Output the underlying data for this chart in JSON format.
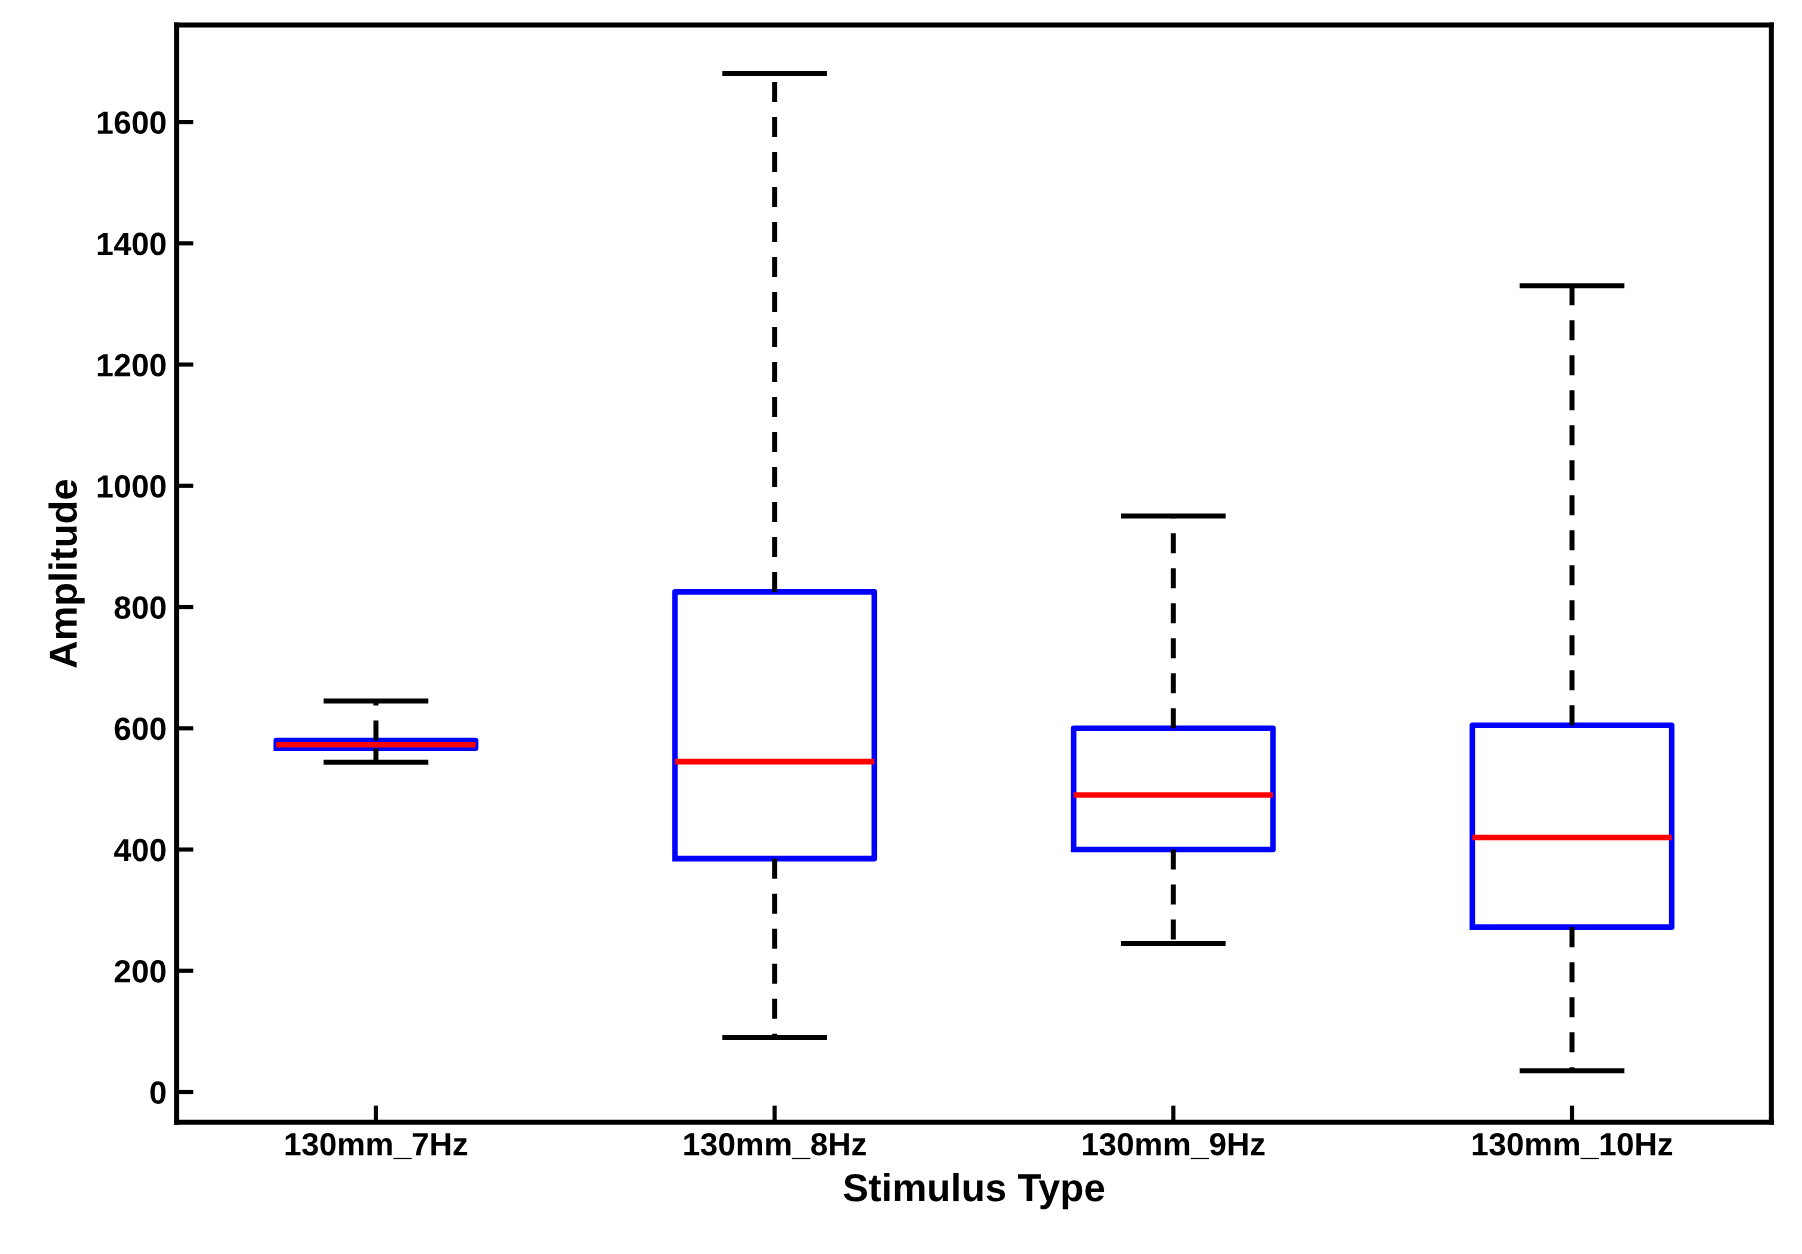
{
  "chart_data": {
    "type": "box",
    "xlabel": "Stimulus Type",
    "ylabel": "Amplitude",
    "categories": [
      "130mm_7Hz",
      "130mm_8Hz",
      "130mm_9Hz",
      "130mm_10Hz"
    ],
    "boxes": [
      {
        "low": 544,
        "q1": 567,
        "median": 573,
        "q3": 580,
        "high": 645
      },
      {
        "low": 90,
        "q1": 385,
        "median": 545,
        "q3": 825,
        "high": 1680
      },
      {
        "low": 245,
        "q1": 400,
        "median": 490,
        "q3": 600,
        "high": 950
      },
      {
        "low": 35,
        "q1": 272,
        "median": 420,
        "q3": 605,
        "high": 1330
      }
    ],
    "color": "#0000ff",
    "ylim": [
      -50,
      1760
    ],
    "yticks": [
      0,
      200,
      400,
      600,
      800,
      1000,
      1200,
      1400,
      1600
    ],
    "grid": false,
    "legend": false
  }
}
